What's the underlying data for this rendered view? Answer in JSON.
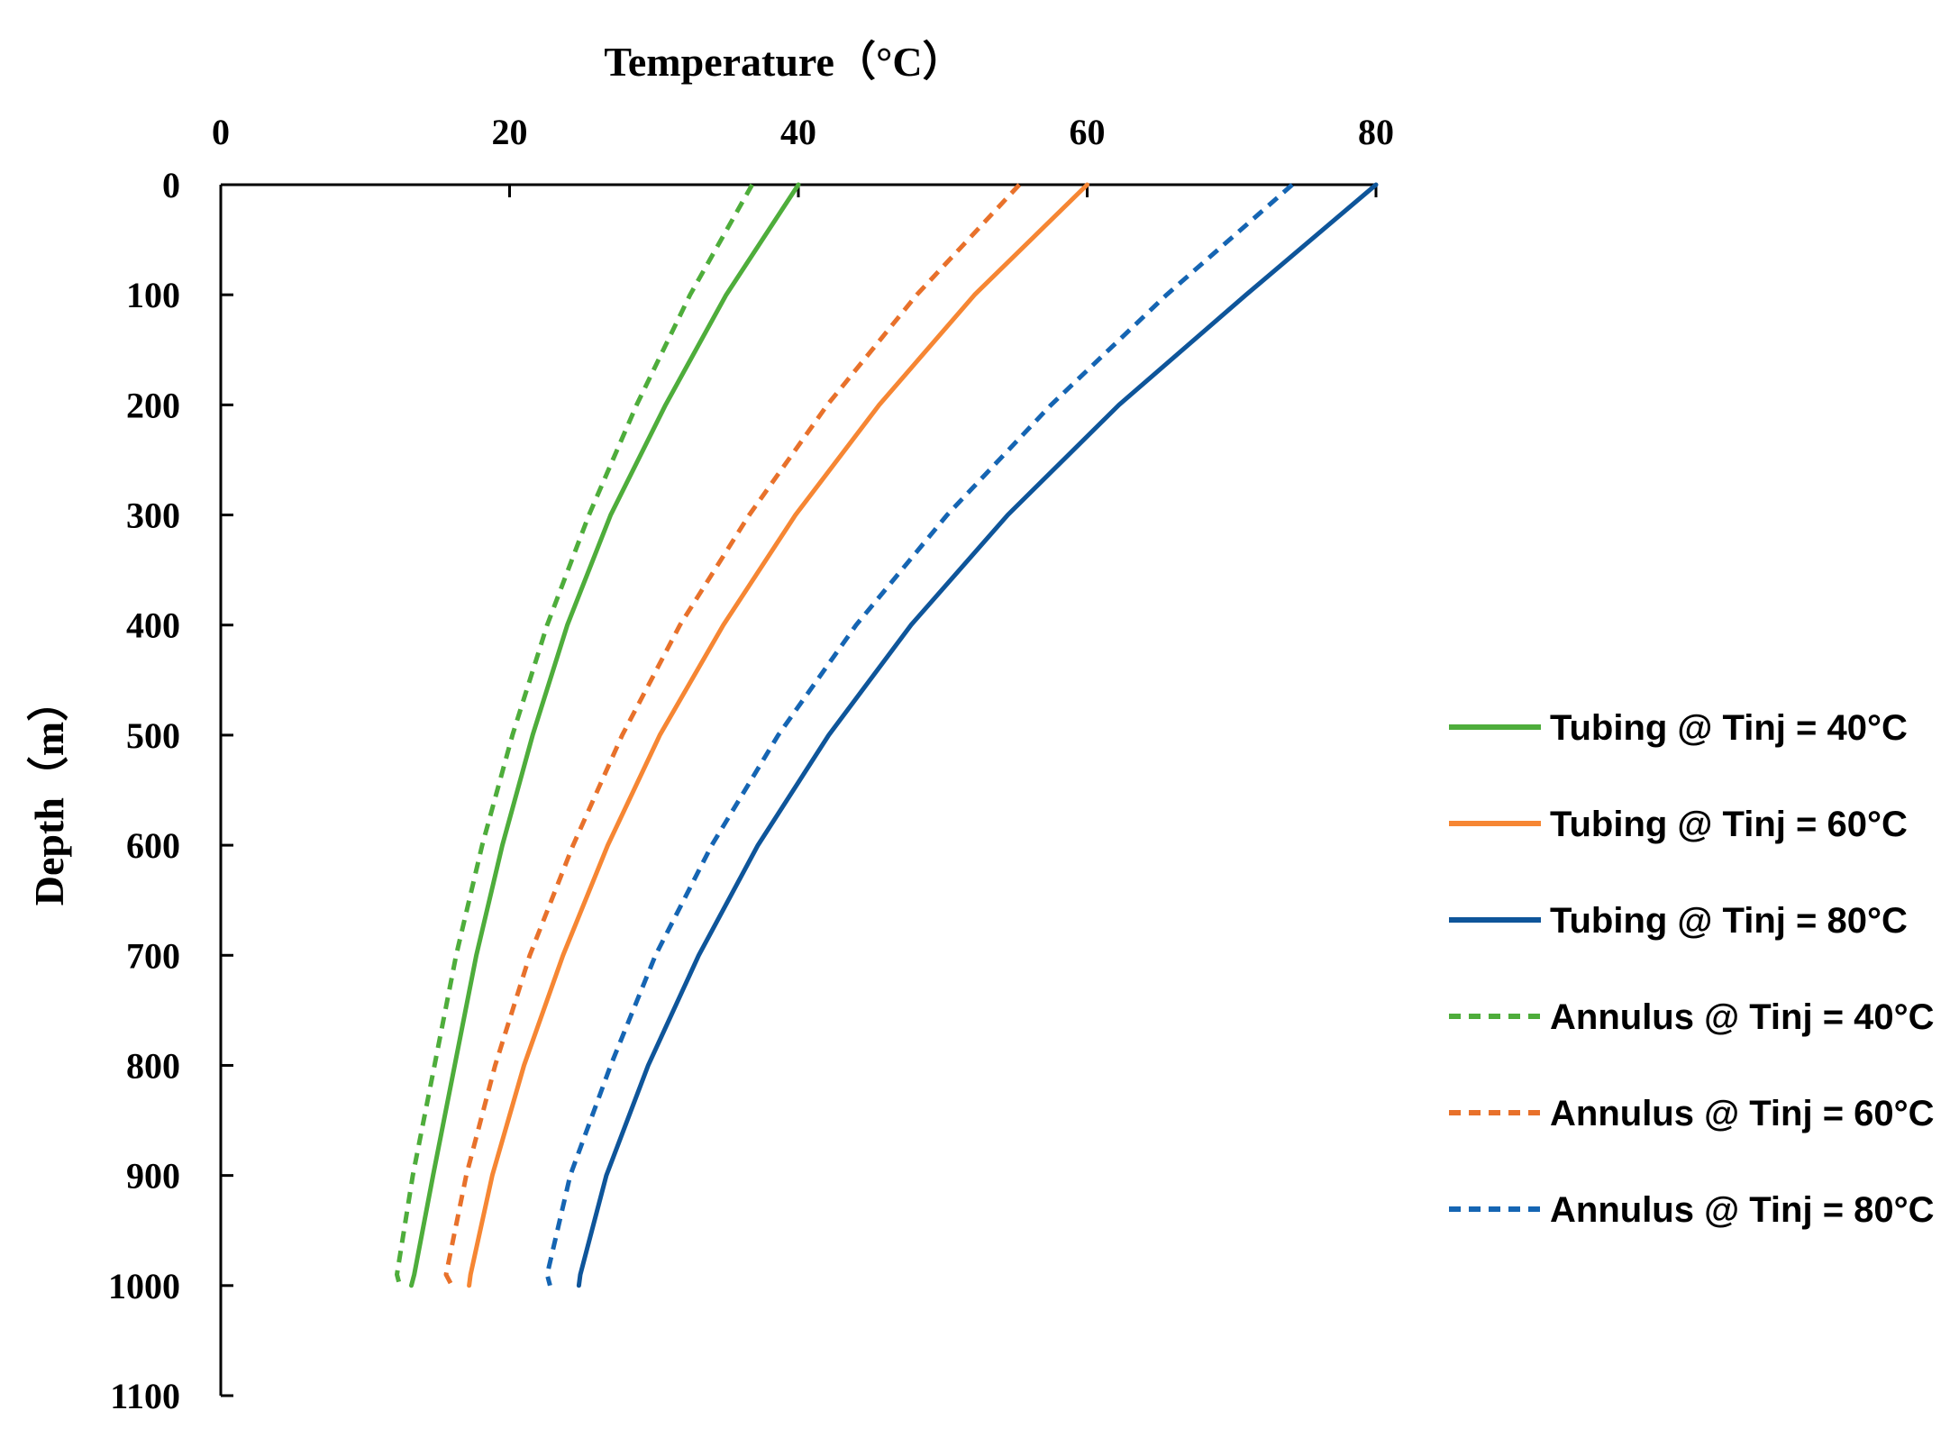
{
  "chart_data": {
    "type": "line",
    "orientation": "depth-profile",
    "xlabel": "Temperature（°C）",
    "ylabel": "Depth（m）",
    "xlim": [
      0,
      80
    ],
    "ylim": [
      0,
      1100
    ],
    "x_ticks": [
      0,
      20,
      40,
      60,
      80
    ],
    "y_ticks": [
      0,
      100,
      200,
      300,
      400,
      500,
      600,
      700,
      800,
      900,
      1000,
      1100
    ],
    "x_axis_position": "top",
    "y_axis_inverted": true,
    "grid": false,
    "legend_position": "right",
    "depth": [
      0,
      100,
      200,
      300,
      400,
      500,
      600,
      700,
      800,
      900,
      990,
      1000
    ],
    "series": [
      {
        "name": "Tubing @ Tinj = 40°C",
        "style": "solid",
        "color": "#4EAD3B",
        "temperature": [
          40.0,
          35.0,
          30.8,
          27.0,
          24.0,
          21.6,
          19.5,
          17.7,
          16.2,
          14.7,
          13.4,
          13.2
        ]
      },
      {
        "name": "Tubing @ Tinj = 60°C",
        "style": "solid",
        "color": "#F68633",
        "temperature": [
          60.0,
          52.2,
          45.6,
          39.8,
          34.8,
          30.4,
          26.8,
          23.7,
          21.0,
          18.8,
          17.3,
          17.2
        ]
      },
      {
        "name": "Tubing @ Tinj = 80°C",
        "style": "solid",
        "color": "#0E559A",
        "temperature": [
          80.0,
          71.0,
          62.2,
          54.5,
          47.8,
          42.1,
          37.2,
          33.1,
          29.6,
          26.7,
          24.9,
          24.8
        ]
      },
      {
        "name": "Annulus @ Tinj = 40°C",
        "style": "dashed",
        "color": "#4EAD3B",
        "temperature": [
          36.8,
          32.5,
          28.8,
          25.5,
          22.6,
          20.2,
          18.1,
          16.3,
          14.8,
          13.3,
          12.2,
          12.4
        ]
      },
      {
        "name": "Annulus @ Tinj = 60°C",
        "style": "dashed",
        "color": "#E8712B",
        "temperature": [
          55.3,
          48.2,
          42.0,
          36.6,
          31.8,
          27.8,
          24.4,
          21.4,
          19.0,
          17.0,
          15.6,
          16.0
        ]
      },
      {
        "name": "Annulus @ Tinj = 80°C",
        "style": "dashed",
        "color": "#1565B3",
        "temperature": [
          74.2,
          65.5,
          57.5,
          50.3,
          44.0,
          38.6,
          34.0,
          30.1,
          27.0,
          24.2,
          22.6,
          22.8
        ]
      }
    ]
  }
}
